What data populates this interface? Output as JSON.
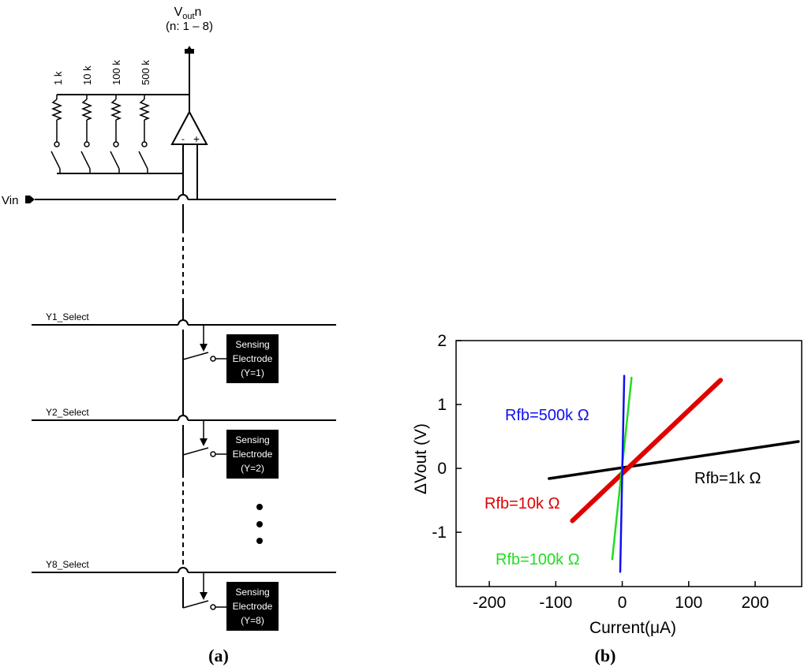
{
  "panel_a": {
    "caption": "(a)",
    "vout_label_main": "V",
    "vout_label_sub": "out",
    "vout_label_n": "n",
    "vout_range": "(n: 1 – 8)",
    "resistors": [
      "1 k",
      "10 k",
      "100 k",
      "500 k"
    ],
    "vin_label": "Vin",
    "opamp_minus": "-",
    "opamp_plus": "+",
    "rows": [
      {
        "select": "Y1_Select",
        "box_line1": "Sensing",
        "box_line2": "Electrode",
        "box_line3": "(Y=1)"
      },
      {
        "select": "Y2_Select",
        "box_line1": "Sensing",
        "box_line2": "Electrode",
        "box_line3": "(Y=2)"
      },
      {
        "select": "Y8_Select",
        "box_line1": "Sensing",
        "box_line2": "Electrode",
        "box_line3": "(Y=8)"
      }
    ]
  },
  "panel_b": {
    "caption": "(b)",
    "chart_data": {
      "type": "line",
      "xlabel": "Current(μA)",
      "ylabel": "ΔVout   (V)",
      "xlim": [
        -250,
        270
      ],
      "ylim": [
        -1.85,
        2.0
      ],
      "xticks": [
        -200,
        -100,
        0,
        100,
        200
      ],
      "yticks": [
        -1,
        0,
        1,
        2
      ],
      "series": [
        {
          "name": "Rfb=1k Ω",
          "color": "#000000",
          "x": [
            -110,
            265
          ],
          "y": [
            -0.16,
            0.42
          ]
        },
        {
          "name": "Rfb=10k Ω",
          "color": "#e00000",
          "x": [
            -75,
            148
          ],
          "y": [
            -0.82,
            1.38
          ]
        },
        {
          "name": "Rfb=100k Ω",
          "color": "#22dd22",
          "x": [
            -15,
            14
          ],
          "y": [
            -1.42,
            1.42
          ]
        },
        {
          "name": "Rfb=500k Ω",
          "color": "#1010ee",
          "x": [
            -3,
            3
          ],
          "y": [
            -1.62,
            1.45
          ]
        }
      ]
    }
  }
}
